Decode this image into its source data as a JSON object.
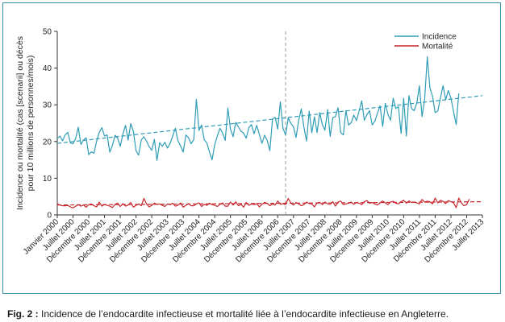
{
  "figure": {
    "caption_lead": "Fig. 2 :",
    "caption_text": " Incidence de l’endocardite infectieuse et mortalité liée à l’endocardite infectieuse en Angleterre."
  },
  "chart_data": {
    "type": "line",
    "title": "",
    "ylabel_line1": "Incidence ou mortalité (cas [scenarii] ou décès",
    "ylabel_line2": "pour 10 millions de personnes/mois)",
    "xlabel": "",
    "ylim": [
      0,
      50
    ],
    "yticks": [
      0,
      10,
      20,
      30,
      40,
      50
    ],
    "grid": false,
    "legend_position": "top-right",
    "x_start": "Janvier 2000",
    "x_end": "Juillet 2013",
    "x_tick_labels": [
      "Janvier 2000",
      "Juillet 2000",
      "Décembre 2000",
      "Juillet 2001",
      "Décembre 2001",
      "Juillet 2002",
      "Décembre 2002",
      "Juillet 2003",
      "Décembre 2003",
      "Juillet 2004",
      "Décembre 2004",
      "Juillet 2005",
      "Décembre 2005",
      "Juillet 2006",
      "Décembre 2006",
      "Juillet 2007",
      "Décembre 2007",
      "Juillet 2008",
      "Décembre 2008",
      "Juillet 2009",
      "Décembre 2009",
      "Juillet 2010",
      "Décembre 2010",
      "Juillet 2011",
      "Décembre 2011",
      "Juillet 2012",
      "Décembre 2012",
      "Juillet 2013"
    ],
    "vertical_marker_month": 87,
    "series": [
      {
        "name": "Incidence",
        "color": "#2f9db6",
        "trend": [
          19.5,
          32.5
        ],
        "values": [
          20.8,
          21.5,
          20.2,
          21.8,
          22.5,
          19.6,
          19.4,
          20.8,
          23.9,
          19.2,
          20.4,
          21.0,
          16.4,
          17.2,
          16.8,
          20.1,
          22.5,
          23.8,
          21.5,
          21.8,
          17.1,
          18.9,
          21.7,
          20.9,
          18.7,
          22.0,
          24.4,
          20.4,
          24.9,
          22.8,
          17.5,
          16.3,
          20.4,
          21.3,
          20.1,
          18.6,
          17.6,
          20.6,
          14.9,
          19.7,
          18.7,
          19.8,
          18.2,
          19.5,
          21.5,
          23.6,
          20.2,
          18.8,
          17.1,
          21.8,
          21.0,
          19.4,
          20.5,
          31.5,
          23.0,
          24.5,
          20.5,
          19.6,
          17.1,
          15.0,
          19.2,
          21.5,
          23.6,
          22.3,
          20.3,
          29.1,
          23.4,
          21.3,
          25.2,
          24.0,
          22.8,
          22.3,
          20.9,
          23.8,
          24.6,
          22.1,
          24.4,
          21.9,
          19.5,
          21.7,
          20.3,
          17.5,
          26.1,
          26.6,
          23.4,
          30.8,
          23.6,
          21.8,
          26.4,
          25.0,
          24.0,
          21.1,
          25.8,
          28.9,
          23.8,
          20.1,
          28.3,
          22.4,
          26.7,
          22.4,
          27.9,
          24.6,
          23.1,
          28.7,
          21.4,
          26.5,
          26.8,
          29.2,
          22.5,
          21.8,
          28.4,
          24.5,
          25.1,
          27.2,
          25.7,
          28.2,
          31.1,
          25.8,
          27.3,
          28.4,
          24.5,
          25.5,
          27.7,
          29.7,
          24.1,
          30.4,
          27.4,
          25.8,
          31.8,
          29.0,
          29.5,
          22.2,
          31.8,
          21.5,
          32.5,
          29.0,
          28.4,
          30.5,
          35.2,
          26.8,
          31.5,
          43.1,
          34.6,
          32.3,
          27.9,
          28.3,
          31.9,
          35.2,
          31.4,
          33.9,
          31.8,
          28.2,
          24.6,
          33.1
        ]
      },
      {
        "name": "Mortalité",
        "color": "#c8262c",
        "trend": [
          2.7,
          3.6
        ],
        "values": [
          3.0,
          2.7,
          2.5,
          2.5,
          2.6,
          2.2,
          1.9,
          2.4,
          2.8,
          2.4,
          2.7,
          2.1,
          2.8,
          3.0,
          2.5,
          2.2,
          3.5,
          2.4,
          2.9,
          2.6,
          2.4,
          2.0,
          2.9,
          3.2,
          2.3,
          3.1,
          2.4,
          2.7,
          3.4,
          2.1,
          2.6,
          3.0,
          2.5,
          4.5,
          3.0,
          2.2,
          2.6,
          3.2,
          2.9,
          3.0,
          2.6,
          2.3,
          3.0,
          2.8,
          3.2,
          2.4,
          2.6,
          3.3,
          2.1,
          2.6,
          3.1,
          2.5,
          2.5,
          3.0,
          3.3,
          2.3,
          2.9,
          2.6,
          3.2,
          2.8,
          2.6,
          2.3,
          2.9,
          3.3,
          2.4,
          2.4,
          3.5,
          2.7,
          3.6,
          2.5,
          2.9,
          2.1,
          3.4,
          2.6,
          3.0,
          2.8,
          3.1,
          2.2,
          2.9,
          3.4,
          3.2,
          2.5,
          3.0,
          2.7,
          3.8,
          2.9,
          3.1,
          2.8,
          4.5,
          3.3,
          2.7,
          3.4,
          3.0,
          2.5,
          2.8,
          3.5,
          3.1,
          3.0,
          2.2,
          3.3,
          3.4,
          2.8,
          3.5,
          3.0,
          2.9,
          3.6,
          2.4,
          3.5,
          3.8,
          2.8,
          3.0,
          3.2,
          3.5,
          2.9,
          3.4,
          3.2,
          2.8,
          3.6,
          3.9,
          3.2,
          3.4,
          3.0,
          2.7,
          3.3,
          3.8,
          3.3,
          2.8,
          3.5,
          3.7,
          3.2,
          3.0,
          3.6,
          4.0,
          3.2,
          3.8,
          3.4,
          3.5,
          3.3,
          3.0,
          4.2,
          3.5,
          3.7,
          3.6,
          3.0,
          4.6,
          3.3,
          4.0,
          3.7,
          3.1,
          3.9,
          3.6,
          3.3,
          2.0,
          4.6,
          3.3,
          2.5,
          2.8,
          4.3
        ]
      }
    ]
  }
}
